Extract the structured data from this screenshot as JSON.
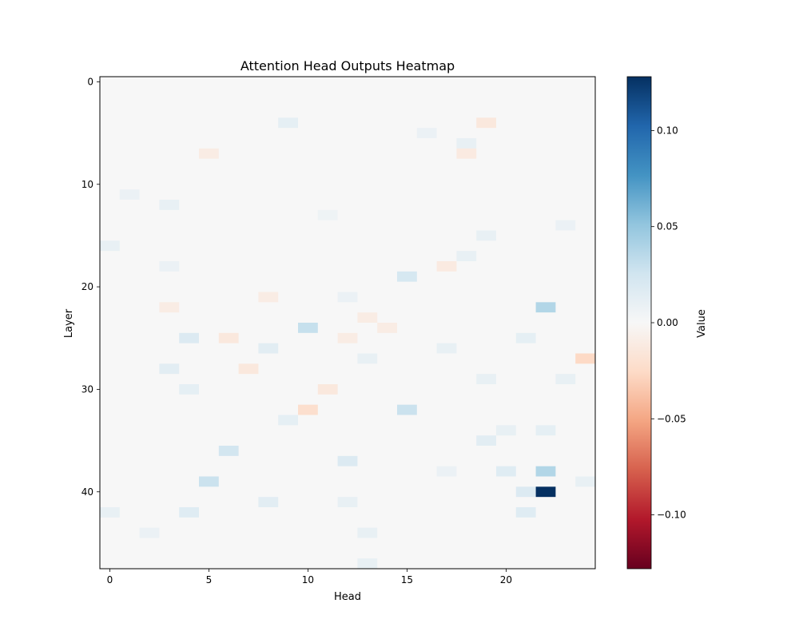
{
  "chart_data": {
    "type": "heatmap",
    "title": "Attention Head Outputs Heatmap",
    "xlabel": "Head",
    "ylabel": "Layer",
    "colorbar_label": "Value",
    "colormap": "RdBu",
    "grid": false,
    "n_heads": 25,
    "n_layers": 48,
    "xlim": [
      -0.5,
      24.5
    ],
    "ylim": [
      47.5,
      -0.5
    ],
    "vmin": -0.128,
    "vmax": 0.128,
    "x_ticks": [
      0,
      5,
      10,
      15,
      20
    ],
    "x_tick_labels": [
      "0",
      "5",
      "10",
      "15",
      "20"
    ],
    "y_ticks": [
      0,
      10,
      20,
      30,
      40
    ],
    "y_tick_labels": [
      "0",
      "10",
      "20",
      "30",
      "40"
    ],
    "colorbar_ticks": [
      0.1,
      0.05,
      0.0,
      -0.05,
      -0.1
    ],
    "colorbar_tick_labels": [
      "0.10",
      "0.05",
      "0.00",
      "−0.05",
      "−0.10"
    ],
    "background_value": 0.0,
    "cells": [
      {
        "layer": 4,
        "head": 9,
        "value": 0.012
      },
      {
        "layer": 4,
        "head": 19,
        "value": -0.014
      },
      {
        "layer": 5,
        "head": 16,
        "value": 0.008
      },
      {
        "layer": 6,
        "head": 18,
        "value": 0.01
      },
      {
        "layer": 7,
        "head": 5,
        "value": -0.01
      },
      {
        "layer": 7,
        "head": 18,
        "value": -0.012
      },
      {
        "layer": 11,
        "head": 1,
        "value": 0.008
      },
      {
        "layer": 12,
        "head": 3,
        "value": 0.01
      },
      {
        "layer": 13,
        "head": 11,
        "value": 0.006
      },
      {
        "layer": 14,
        "head": 23,
        "value": 0.008
      },
      {
        "layer": 15,
        "head": 19,
        "value": 0.01
      },
      {
        "layer": 16,
        "head": 0,
        "value": 0.01
      },
      {
        "layer": 17,
        "head": 18,
        "value": 0.01
      },
      {
        "layer": 18,
        "head": 3,
        "value": 0.008
      },
      {
        "layer": 18,
        "head": 17,
        "value": -0.012
      },
      {
        "layer": 19,
        "head": 15,
        "value": 0.022
      },
      {
        "layer": 21,
        "head": 8,
        "value": -0.01
      },
      {
        "layer": 21,
        "head": 12,
        "value": 0.008
      },
      {
        "layer": 22,
        "head": 3,
        "value": -0.01
      },
      {
        "layer": 22,
        "head": 22,
        "value": 0.038
      },
      {
        "layer": 23,
        "head": 13,
        "value": -0.01
      },
      {
        "layer": 24,
        "head": 10,
        "value": 0.03
      },
      {
        "layer": 24,
        "head": 14,
        "value": -0.01
      },
      {
        "layer": 25,
        "head": 4,
        "value": 0.018
      },
      {
        "layer": 25,
        "head": 6,
        "value": -0.014
      },
      {
        "layer": 25,
        "head": 12,
        "value": -0.01
      },
      {
        "layer": 25,
        "head": 21,
        "value": 0.012
      },
      {
        "layer": 26,
        "head": 8,
        "value": 0.014
      },
      {
        "layer": 26,
        "head": 17,
        "value": 0.01
      },
      {
        "layer": 27,
        "head": 13,
        "value": 0.01
      },
      {
        "layer": 27,
        "head": 24,
        "value": -0.026
      },
      {
        "layer": 28,
        "head": 3,
        "value": 0.014
      },
      {
        "layer": 28,
        "head": 7,
        "value": -0.014
      },
      {
        "layer": 29,
        "head": 19,
        "value": 0.01
      },
      {
        "layer": 29,
        "head": 23,
        "value": 0.01
      },
      {
        "layer": 30,
        "head": 4,
        "value": 0.012
      },
      {
        "layer": 30,
        "head": 11,
        "value": -0.014
      },
      {
        "layer": 32,
        "head": 10,
        "value": -0.022
      },
      {
        "layer": 32,
        "head": 15,
        "value": 0.028
      },
      {
        "layer": 33,
        "head": 9,
        "value": 0.012
      },
      {
        "layer": 34,
        "head": 20,
        "value": 0.01
      },
      {
        "layer": 34,
        "head": 22,
        "value": 0.012
      },
      {
        "layer": 35,
        "head": 19,
        "value": 0.014
      },
      {
        "layer": 36,
        "head": 6,
        "value": 0.024
      },
      {
        "layer": 37,
        "head": 12,
        "value": 0.018
      },
      {
        "layer": 38,
        "head": 17,
        "value": 0.008
      },
      {
        "layer": 38,
        "head": 20,
        "value": 0.016
      },
      {
        "layer": 38,
        "head": 22,
        "value": 0.038
      },
      {
        "layer": 39,
        "head": 5,
        "value": 0.028
      },
      {
        "layer": 39,
        "head": 24,
        "value": 0.01
      },
      {
        "layer": 40,
        "head": 21,
        "value": 0.018
      },
      {
        "layer": 40,
        "head": 22,
        "value": 0.128
      },
      {
        "layer": 41,
        "head": 8,
        "value": 0.014
      },
      {
        "layer": 41,
        "head": 12,
        "value": 0.01
      },
      {
        "layer": 42,
        "head": 0,
        "value": 0.01
      },
      {
        "layer": 42,
        "head": 4,
        "value": 0.016
      },
      {
        "layer": 42,
        "head": 21,
        "value": 0.016
      },
      {
        "layer": 44,
        "head": 2,
        "value": 0.008
      },
      {
        "layer": 44,
        "head": 13,
        "value": 0.01
      },
      {
        "layer": 47,
        "head": 13,
        "value": 0.01
      }
    ]
  }
}
